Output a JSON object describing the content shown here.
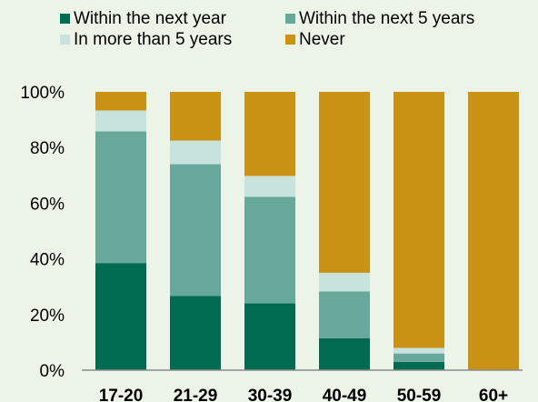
{
  "chart_data": {
    "type": "bar",
    "stacked": true,
    "title": "",
    "xlabel": "",
    "ylabel": "",
    "ylim": [
      0,
      100
    ],
    "y_ticks": [
      0,
      20,
      40,
      60,
      80,
      100
    ],
    "y_tick_labels": [
      "0%",
      "20%",
      "40%",
      "60%",
      "80%",
      "100%"
    ],
    "grid": false,
    "legend_position": "top",
    "categories": [
      "17-20",
      "21-29",
      "30-39",
      "40-49",
      "50-59",
      "60+"
    ],
    "series": [
      {
        "name": "Within the next year",
        "color": "#006b50",
        "values": [
          38.5,
          26.7,
          24,
          11.5,
          3,
          0
        ]
      },
      {
        "name": "Within the next 5 years",
        "color": "#67a89a",
        "values": [
          47.3,
          47.3,
          38.3,
          16.8,
          3,
          0
        ]
      },
      {
        "name": "In more than 5 years",
        "color": "#c7e3dc",
        "values": [
          7.5,
          8.5,
          7.5,
          6.7,
          2,
          0
        ]
      },
      {
        "name": "Never",
        "color": "#c99214",
        "values": [
          6.7,
          17.5,
          30.2,
          65,
          92,
          100
        ]
      }
    ]
  }
}
